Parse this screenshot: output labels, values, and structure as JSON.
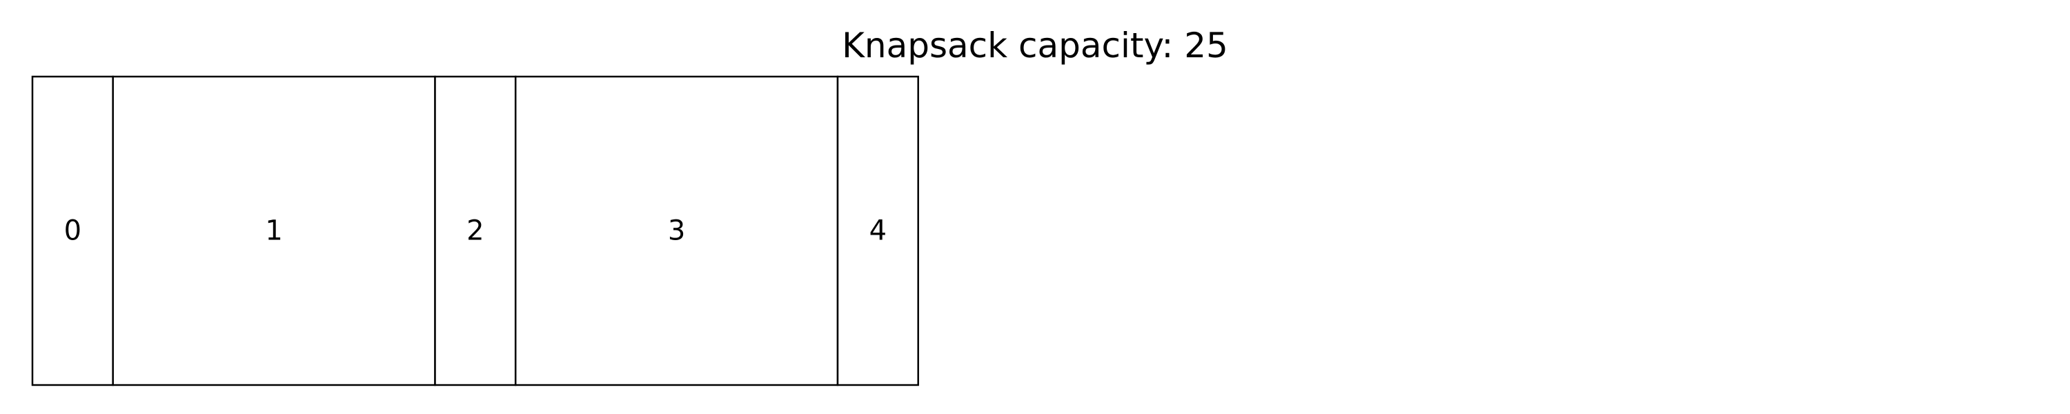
{
  "title": "Knapsack capacity: 25",
  "chart_data": {
    "type": "bar",
    "orientation": "horizontal-stacked",
    "capacity": 25,
    "items": [
      {
        "label": "0",
        "size": 2
      },
      {
        "label": "1",
        "size": 8
      },
      {
        "label": "2",
        "size": 2
      },
      {
        "label": "3",
        "size": 8
      },
      {
        "label": "4",
        "size": 2
      }
    ],
    "colors": {
      "fill": "#ffffff",
      "stroke": "#000000",
      "text": "#000000"
    }
  }
}
